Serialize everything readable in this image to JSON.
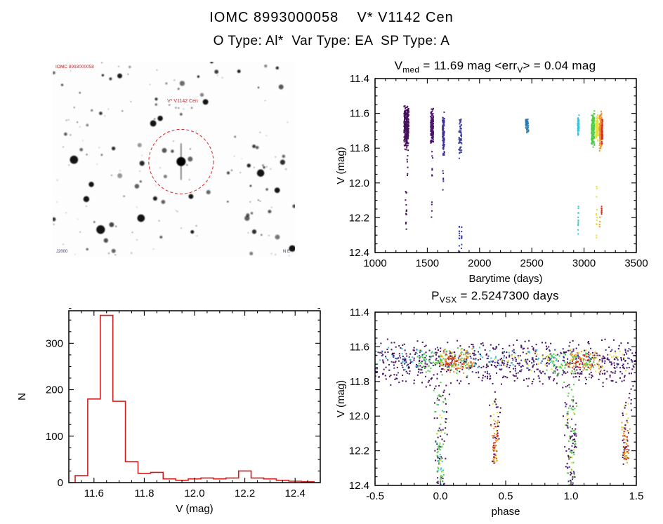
{
  "page": {
    "title_line1": "IOMC 8993000058    V* V1142 Cen",
    "title_line2": "O Type: Al*  Var Type: EA  SP Type: A"
  },
  "starfield": {
    "seed": 20,
    "n_faint": 160,
    "n_bright": 12,
    "target_fx": 0.53,
    "target_fy": 0.512,
    "circle_radius": 46,
    "circle_color": "#dd2222",
    "annotations": {
      "top_left": "IOMC 8993000058",
      "center": "V* V1142 Cen",
      "bottom_left": "J2000",
      "bottom_right": "N  E"
    }
  },
  "chart_data": [
    {
      "id": "lightcurve",
      "type": "scatter",
      "seed": 11,
      "title": {
        "p1": "V",
        "s1": "med",
        "p2": " = 11.69 mag <err",
        "s2": "V",
        "p3": "> = 0.04 mag"
      },
      "xlabel": "Barytime (days)",
      "ylabel": "V (mag)",
      "xlim": [
        1000,
        3500
      ],
      "ylim": [
        11.4,
        12.4
      ],
      "y_inverted": true,
      "xticks": [
        1000,
        1500,
        2000,
        2500,
        3000,
        3500
      ],
      "xtick_labels": [
        "1000",
        "1500",
        "2000",
        "2500",
        "3000",
        "3500"
      ],
      "yticks": [
        11.4,
        11.6,
        11.8,
        12.0,
        12.2,
        12.4
      ],
      "ytick_labels": [
        "11.4",
        "11.6",
        "11.8",
        "12.0",
        "12.2",
        "12.4"
      ],
      "x_minor": 100,
      "y_minor": 0.05,
      "clusters": [
        {
          "type": "band",
          "x": 1300,
          "dx": 45,
          "y": [
            11.55,
            11.82
          ],
          "n": 280,
          "color": "#46105e"
        },
        {
          "type": "streak",
          "x": 1296,
          "dx": 12,
          "y": [
            12.05,
            12.27
          ],
          "n": 14,
          "color": "#46105e"
        },
        {
          "type": "streak",
          "x": 1310,
          "dx": 6,
          "y": [
            11.84,
            12.0
          ],
          "n": 6,
          "color": "#46105e"
        },
        {
          "type": "band",
          "x": 1545,
          "dx": 26,
          "y": [
            11.57,
            11.79
          ],
          "n": 170,
          "color": "#4a1173"
        },
        {
          "type": "streak",
          "x": 1548,
          "dx": 8,
          "y": [
            11.8,
            11.97
          ],
          "n": 7,
          "color": "#4a1173"
        },
        {
          "type": "streak",
          "x": 1542,
          "dx": 5,
          "y": [
            12.1,
            12.2
          ],
          "n": 4,
          "color": "#4a1173"
        },
        {
          "type": "band",
          "x": 1655,
          "dx": 18,
          "y": [
            11.58,
            11.85
          ],
          "n": 95,
          "color": "#3f3095"
        },
        {
          "type": "streak",
          "x": 1652,
          "dx": 6,
          "y": [
            11.88,
            12.05
          ],
          "n": 6,
          "color": "#3f3095"
        },
        {
          "type": "band",
          "x": 1815,
          "dx": 28,
          "y": [
            11.6,
            11.88
          ],
          "n": 55,
          "color": "#3a3f9e"
        },
        {
          "type": "streak",
          "x": 1806,
          "dx": 5,
          "y": [
            12.18,
            12.42
          ],
          "n": 12,
          "color": "#3a3f9e"
        },
        {
          "type": "streak",
          "x": 1828,
          "dx": 5,
          "y": [
            12.2,
            12.4
          ],
          "n": 10,
          "color": "#3a3f9e"
        },
        {
          "type": "band",
          "x": 2455,
          "dx": 28,
          "y": [
            11.62,
            11.72
          ],
          "n": 45,
          "color": "#2d7bb5"
        },
        {
          "type": "band",
          "x": 2945,
          "dx": 14,
          "y": [
            11.6,
            11.73
          ],
          "n": 55,
          "color": "#38c4da"
        },
        {
          "type": "streak",
          "x": 2945,
          "dx": 5,
          "y": [
            12.1,
            12.43
          ],
          "n": 14,
          "color": "#38c4da"
        },
        {
          "type": "band",
          "x": 3085,
          "dx": 30,
          "y": [
            11.58,
            11.8
          ],
          "n": 140,
          "color": "#52cc48"
        },
        {
          "type": "band",
          "x": 3125,
          "dx": 18,
          "y": [
            11.6,
            11.78
          ],
          "n": 85,
          "color": "#e3e22e"
        },
        {
          "type": "streak",
          "x": 3120,
          "dx": 6,
          "y": [
            12.02,
            12.32
          ],
          "n": 12,
          "color": "#e3e22e"
        },
        {
          "type": "band",
          "x": 3158,
          "dx": 22,
          "y": [
            11.58,
            11.82
          ],
          "n": 160,
          "color": "#ef9426"
        },
        {
          "type": "streak",
          "x": 3150,
          "dx": 5,
          "y": [
            12.18,
            12.26
          ],
          "n": 4,
          "color": "#ef9426"
        },
        {
          "type": "band",
          "x": 3172,
          "dx": 10,
          "y": [
            11.62,
            11.78
          ],
          "n": 55,
          "color": "#d93025"
        },
        {
          "type": "streak",
          "x": 3168,
          "dx": 4,
          "y": [
            12.13,
            12.27
          ],
          "n": 10,
          "color": "#d93025"
        }
      ]
    },
    {
      "id": "histogram",
      "type": "bar",
      "color": "#cc1f1f",
      "xlabel": "V (mag)",
      "ylabel": "N",
      "xlim": [
        11.5,
        12.5
      ],
      "ylim": [
        0,
        370
      ],
      "y_inverted": false,
      "xticks": [
        11.6,
        11.8,
        12.0,
        12.2,
        12.4
      ],
      "xtick_labels": [
        "11.6",
        "11.8",
        "12.0",
        "12.2",
        "12.4"
      ],
      "yticks": [
        0,
        100,
        200,
        300
      ],
      "ytick_labels": [
        "0",
        "100",
        "200",
        "300"
      ],
      "x_minor": 0.05,
      "y_minor": 25,
      "bin_start": 11.525,
      "bin_width": 0.05,
      "counts": [
        15,
        180,
        360,
        175,
        45,
        20,
        22,
        8,
        5,
        8,
        10,
        8,
        10,
        25,
        10,
        8,
        5,
        3,
        2
      ]
    },
    {
      "id": "phaseplot",
      "type": "scatter",
      "seed": 13,
      "title": {
        "p1": "P",
        "s1": "VSX",
        "p2": " = 2.5247300 days"
      },
      "xlabel": "phase",
      "ylabel": "V (mag)",
      "xlim": [
        -0.5,
        1.5
      ],
      "ylim": [
        11.4,
        12.4
      ],
      "y_inverted": true,
      "xticks": [
        -0.5,
        0.0,
        0.5,
        1.0,
        1.5
      ],
      "xtick_labels": [
        "-0.5",
        "0.0",
        "0.5",
        "1.0",
        "1.5"
      ],
      "yticks": [
        11.4,
        11.6,
        11.8,
        12.0,
        12.2,
        12.4
      ],
      "ytick_labels": [
        "11.4",
        "11.6",
        "11.8",
        "12.0",
        "12.2",
        "12.4"
      ],
      "x_minor": 0.1,
      "y_minor": 0.05,
      "clusters": [
        {
          "type": "band",
          "x": 0.5,
          "dx": 2.0,
          "y": [
            11.55,
            11.84
          ],
          "n": 620,
          "color": "#46105e"
        },
        {
          "type": "band",
          "x": 0.5,
          "dx": 2.0,
          "y": [
            11.58,
            11.78
          ],
          "n": 130,
          "color": "#3a3f9e"
        },
        {
          "type": "band",
          "x": 0.3,
          "dx": 1.6,
          "y": [
            11.6,
            11.74
          ],
          "n": 70,
          "color": "#38c4da"
        },
        {
          "type": "band",
          "x": 0.7,
          "dx": 1.5,
          "y": [
            11.6,
            11.76
          ],
          "n": 55,
          "color": "#e3e22e"
        },
        {
          "type": "band",
          "x": 0.02,
          "dx": 0.42,
          "y": [
            11.6,
            11.78
          ],
          "n": 95,
          "color": "#52cc48"
        },
        {
          "type": "band",
          "x": 1.0,
          "dx": 0.38,
          "y": [
            11.6,
            11.78
          ],
          "n": 75,
          "color": "#52cc48"
        },
        {
          "type": "band",
          "x": 0.13,
          "dx": 0.26,
          "y": [
            11.6,
            11.76
          ],
          "n": 75,
          "color": "#ef9426"
        },
        {
          "type": "band",
          "x": 1.1,
          "dx": 0.28,
          "y": [
            11.6,
            11.76
          ],
          "n": 55,
          "color": "#ef9426"
        },
        {
          "type": "band",
          "x": 0.1,
          "dx": 0.14,
          "y": [
            11.62,
            11.75
          ],
          "n": 25,
          "color": "#d93025"
        },
        {
          "type": "band",
          "x": 1.06,
          "dx": 0.16,
          "y": [
            11.62,
            11.75
          ],
          "n": 20,
          "color": "#d93025"
        },
        {
          "type": "funnel",
          "x": 0.0,
          "dx": 0.15,
          "y": [
            11.8,
            12.42
          ],
          "n": 60,
          "color": "#46105e"
        },
        {
          "type": "funnel",
          "x": 0.0,
          "dx": 0.11,
          "y": [
            11.8,
            12.42
          ],
          "n": 48,
          "color": "#52cc48"
        },
        {
          "type": "funnel",
          "x": 0.0,
          "dx": 0.09,
          "y": [
            11.9,
            12.4
          ],
          "n": 14,
          "color": "#38c4da"
        },
        {
          "type": "funnel",
          "x": 0.0,
          "dx": 0.07,
          "y": [
            11.95,
            12.35
          ],
          "n": 8,
          "color": "#e3e22e"
        },
        {
          "type": "funnel",
          "x": 1.0,
          "dx": 0.15,
          "y": [
            11.8,
            12.42
          ],
          "n": 60,
          "color": "#46105e"
        },
        {
          "type": "funnel",
          "x": 1.0,
          "dx": 0.11,
          "y": [
            11.8,
            12.42
          ],
          "n": 48,
          "color": "#52cc48"
        },
        {
          "type": "funnel",
          "x": 1.0,
          "dx": 0.09,
          "y": [
            11.9,
            12.4
          ],
          "n": 12,
          "color": "#3a3f9e"
        },
        {
          "type": "funnel",
          "x": 1.0,
          "dx": 0.07,
          "y": [
            11.95,
            12.35
          ],
          "n": 8,
          "color": "#e3e22e"
        },
        {
          "type": "funnel",
          "x": 0.42,
          "dx": 0.11,
          "y": [
            11.8,
            12.28
          ],
          "n": 35,
          "color": "#46105e"
        },
        {
          "type": "funnel",
          "x": 0.42,
          "dx": 0.07,
          "y": [
            12.02,
            12.27
          ],
          "n": 26,
          "color": "#ef9426"
        },
        {
          "type": "funnel",
          "x": 0.42,
          "dx": 0.05,
          "y": [
            12.06,
            12.25
          ],
          "n": 18,
          "color": "#d93025"
        },
        {
          "type": "funnel",
          "x": 0.42,
          "dx": 0.08,
          "y": [
            11.85,
            12.28
          ],
          "n": 14,
          "color": "#e3e22e"
        },
        {
          "type": "funnel",
          "x": 1.42,
          "dx": 0.11,
          "y": [
            11.8,
            12.28
          ],
          "n": 35,
          "color": "#46105e"
        },
        {
          "type": "funnel",
          "x": 1.42,
          "dx": 0.07,
          "y": [
            12.02,
            12.27
          ],
          "n": 26,
          "color": "#ef9426"
        },
        {
          "type": "funnel",
          "x": 1.42,
          "dx": 0.05,
          "y": [
            12.06,
            12.25
          ],
          "n": 18,
          "color": "#d93025"
        },
        {
          "type": "funnel",
          "x": 1.42,
          "dx": 0.08,
          "y": [
            11.85,
            12.28
          ],
          "n": 14,
          "color": "#e3e22e"
        }
      ]
    }
  ]
}
